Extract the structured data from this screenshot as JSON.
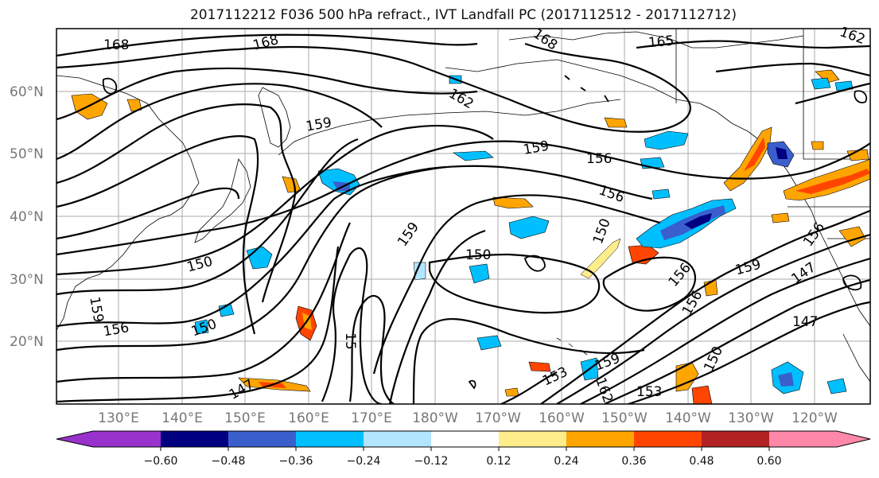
{
  "title": "2017112212 F036 500 hPa refract., IVT Landfall PC (2017112512 - 2017112712)",
  "latitude_labels": [
    "60°N",
    "50°N",
    "40°N",
    "30°N",
    "20°N"
  ],
  "longitude_labels": [
    "130°E",
    "140°E",
    "150°E",
    "160°E",
    "170°E",
    "180°W",
    "170°W",
    "160°W",
    "150°W",
    "140°W",
    "130°W",
    "120°W"
  ],
  "contour_labels": [
    "168",
    "168",
    "168",
    "165",
    "162",
    "162",
    "159",
    "159",
    "156",
    "156",
    "159",
    "150",
    "150",
    "150",
    "159",
    "156",
    "156",
    "147",
    "147",
    "156",
    "150",
    "153",
    "162",
    "153",
    "159",
    "15",
    "150",
    "147",
    "159",
    "156"
  ],
  "colorbar": {
    "colors": [
      "#9932cc",
      "#000080",
      "#3a5fcd",
      "#00bfff",
      "#b2e5ff",
      "#ffffff",
      "#ffec8b",
      "#ffa500",
      "#ff4500",
      "#b22222",
      "#ff88aa"
    ],
    "tick_labels": [
      "−0.60",
      "−0.48",
      "−0.36",
      "−0.24",
      "−0.12",
      "0.12",
      "0.24",
      "0.36",
      "0.48",
      "0.60"
    ]
  }
}
